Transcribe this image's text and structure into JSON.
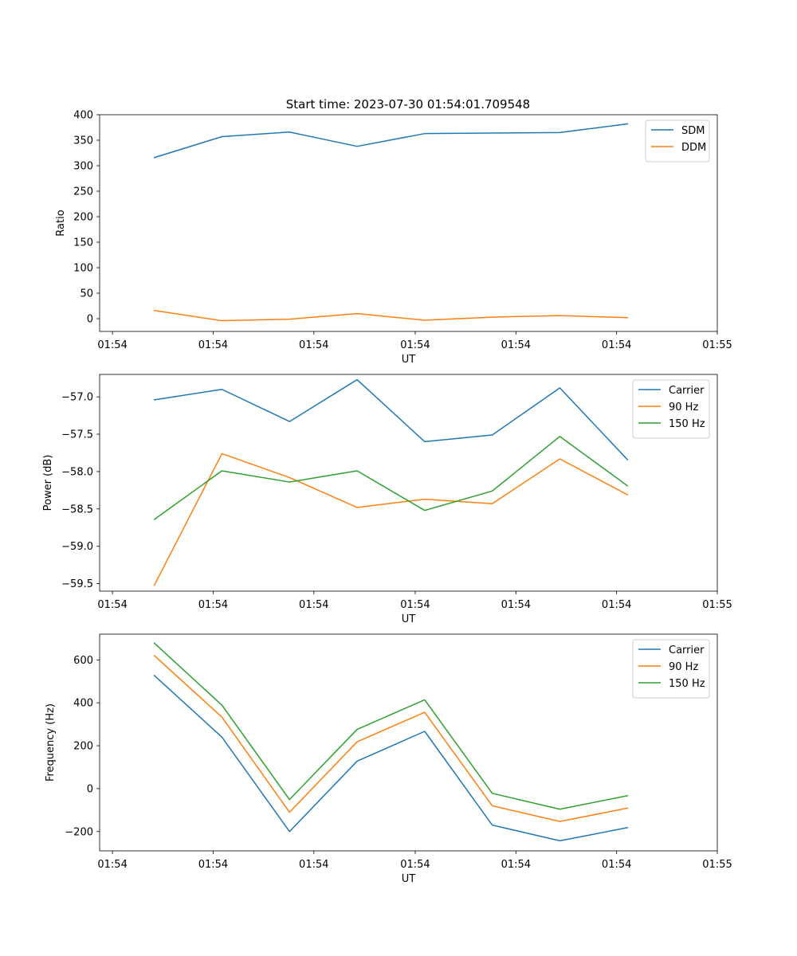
{
  "figure_title": "Start time: 2023-07-30 01:54:01.709548",
  "chart_data": [
    {
      "type": "line",
      "title": "Start time: 2023-07-30 01:54:01.709548",
      "xlabel": "UT",
      "ylabel": "Ratio",
      "x": [
        1,
        2,
        3,
        4,
        5,
        6,
        7,
        8
      ],
      "xlim": [
        0.19,
        9.33
      ],
      "ylim": [
        -25,
        400
      ],
      "xticks": [
        0.38,
        1.87,
        3.36,
        4.86,
        6.35,
        7.84,
        9.33
      ],
      "xtick_labels": [
        "01:54",
        "01:54",
        "01:54",
        "01:54",
        "01:54",
        "01:54",
        "01:55"
      ],
      "yticks": [
        0,
        50,
        100,
        150,
        200,
        250,
        300,
        350,
        400
      ],
      "ytick_labels": [
        "0",
        "50",
        "100",
        "150",
        "200",
        "250",
        "300",
        "350",
        "400"
      ],
      "legend_position": "top-right",
      "series": [
        {
          "name": "SDM",
          "color": "#1f77b4",
          "values": [
            316,
            357,
            366,
            338,
            363,
            364,
            365,
            382
          ]
        },
        {
          "name": "DDM",
          "color": "#ff7f0e",
          "values": [
            16,
            -4,
            -1,
            10,
            -3,
            3,
            6,
            2
          ]
        }
      ]
    },
    {
      "type": "line",
      "title": "",
      "xlabel": "UT",
      "ylabel": "Power (dB)",
      "x": [
        1,
        2,
        3,
        4,
        5,
        6,
        7,
        8
      ],
      "xlim": [
        0.19,
        9.33
      ],
      "ylim": [
        -59.6,
        -56.7
      ],
      "xticks": [
        0.38,
        1.87,
        3.36,
        4.86,
        6.35,
        7.84,
        9.33
      ],
      "xtick_labels": [
        "01:54",
        "01:54",
        "01:54",
        "01:54",
        "01:54",
        "01:54",
        "01:55"
      ],
      "yticks": [
        -59.5,
        -59.0,
        -58.5,
        -58.0,
        -57.5,
        -57.0
      ],
      "ytick_labels": [
        "−59.5",
        "−59.0",
        "−58.5",
        "−58.0",
        "−57.5",
        "−57.0"
      ],
      "legend_position": "top-right",
      "series": [
        {
          "name": "Carrier",
          "color": "#1f77b4",
          "values": [
            -57.04,
            -56.9,
            -57.33,
            -56.77,
            -57.6,
            -57.51,
            -56.88,
            -57.84
          ]
        },
        {
          "name": "90 Hz",
          "color": "#ff7f0e",
          "values": [
            -59.52,
            -57.76,
            -58.08,
            -58.48,
            -58.37,
            -58.43,
            -57.83,
            -58.31
          ]
        },
        {
          "name": "150 Hz",
          "color": "#2ca02c",
          "values": [
            -58.64,
            -57.99,
            -58.14,
            -57.99,
            -58.52,
            -58.26,
            -57.53,
            -58.19
          ]
        }
      ]
    },
    {
      "type": "line",
      "title": "",
      "xlabel": "UT",
      "ylabel": "Frequency (Hz)",
      "x": [
        1,
        2,
        3,
        4,
        5,
        6,
        7,
        8
      ],
      "xlim": [
        0.19,
        9.33
      ],
      "ylim": [
        -290,
        720
      ],
      "xticks": [
        0.38,
        1.87,
        3.36,
        4.86,
        6.35,
        7.84,
        9.33
      ],
      "xtick_labels": [
        "01:54",
        "01:54",
        "01:54",
        "01:54",
        "01:54",
        "01:54",
        "01:55"
      ],
      "yticks": [
        -200,
        0,
        200,
        400,
        600
      ],
      "ytick_labels": [
        "−200",
        "0",
        "200",
        "400",
        "600"
      ],
      "legend_position": "top-right",
      "series": [
        {
          "name": "Carrier",
          "color": "#1f77b4",
          "values": [
            527,
            240,
            -200,
            128,
            267,
            -170,
            -243,
            -182
          ]
        },
        {
          "name": "90 Hz",
          "color": "#ff7f0e",
          "values": [
            620,
            333,
            -110,
            218,
            356,
            -80,
            -153,
            -91
          ]
        },
        {
          "name": "150 Hz",
          "color": "#2ca02c",
          "values": [
            678,
            389,
            -51,
            276,
            414,
            -22,
            -96,
            -33
          ]
        }
      ]
    }
  ]
}
